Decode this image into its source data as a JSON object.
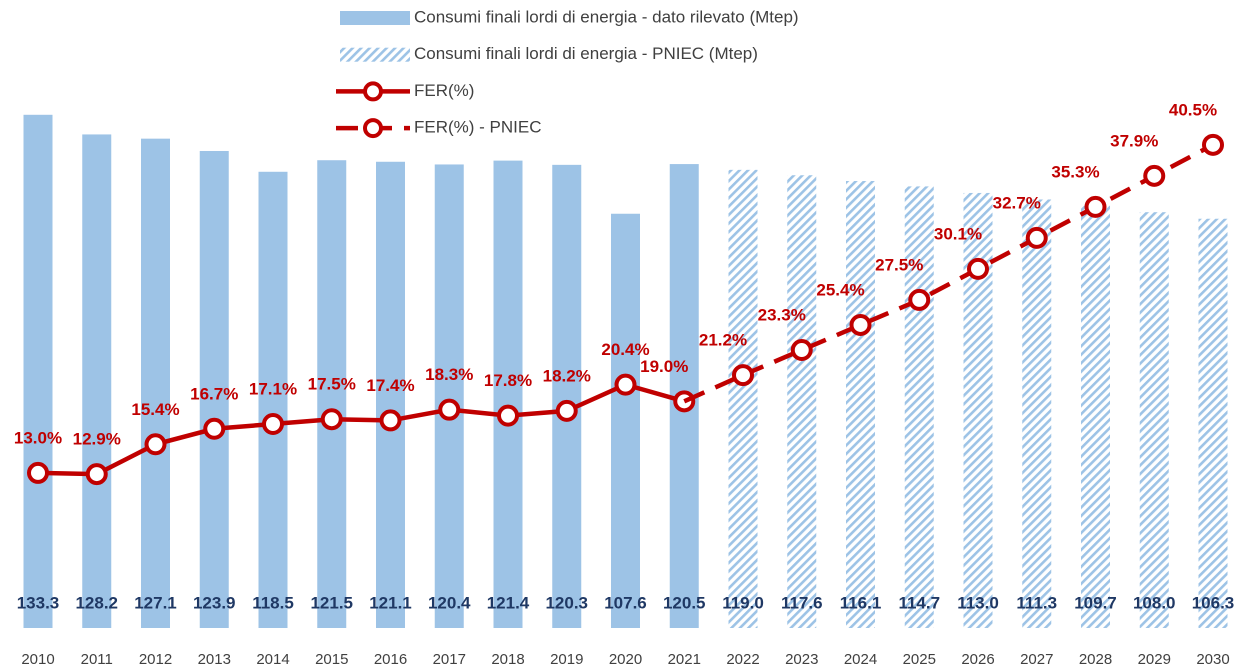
{
  "chart_data": {
    "type": "bar-line",
    "categories": [
      "2010",
      "2011",
      "2012",
      "2013",
      "2014",
      "2015",
      "2016",
      "2017",
      "2018",
      "2019",
      "2020",
      "2021",
      "2022",
      "2023",
      "2024",
      "2025",
      "2026",
      "2027",
      "2028",
      "2029",
      "2030"
    ],
    "series": [
      {
        "name": "Consumi finali lordi di energia - dato rilevato (Mtep)",
        "type": "bar",
        "fill": "solid",
        "color": "#9dc3e6",
        "values": [
          133.3,
          128.2,
          127.1,
          123.9,
          118.5,
          121.5,
          121.1,
          120.4,
          121.4,
          120.3,
          107.6,
          120.5,
          null,
          null,
          null,
          null,
          null,
          null,
          null,
          null,
          null
        ],
        "value_labels": [
          "133.3",
          "128.2",
          "127.1",
          "123.9",
          "118.5",
          "121.5",
          "121.1",
          "120.4",
          "121.4",
          "120.3",
          "107.6",
          "120.5",
          null,
          null,
          null,
          null,
          null,
          null,
          null,
          null,
          null
        ]
      },
      {
        "name": "Consumi finali lordi di energia - PNIEC (Mtep)",
        "type": "bar",
        "fill": "hatched",
        "color": "#9dc3e6",
        "values": [
          null,
          null,
          null,
          null,
          null,
          null,
          null,
          null,
          null,
          null,
          null,
          null,
          119.0,
          117.6,
          116.1,
          114.7,
          113.0,
          111.3,
          109.7,
          108.0,
          106.3
        ],
        "value_labels": [
          null,
          null,
          null,
          null,
          null,
          null,
          null,
          null,
          null,
          null,
          null,
          null,
          "119.0",
          "117.6",
          "116.1",
          "114.7",
          "113.0",
          "111.3",
          "109.7",
          "108.0",
          "106.3"
        ]
      },
      {
        "name": "FER(%)",
        "type": "line",
        "line_style": "solid",
        "color": "#c00000",
        "axis": "y2",
        "values": [
          13.0,
          12.9,
          15.4,
          16.7,
          17.1,
          17.5,
          17.4,
          18.3,
          17.8,
          18.2,
          20.4,
          19.0,
          null,
          null,
          null,
          null,
          null,
          null,
          null,
          null,
          null
        ],
        "value_labels": [
          "13.0%",
          "12.9%",
          "15.4%",
          "16.7%",
          "17.1%",
          "17.5%",
          "17.4%",
          "18.3%",
          "17.8%",
          "18.2%",
          "20.4%",
          "19.0%",
          null,
          null,
          null,
          null,
          null,
          null,
          null,
          null,
          null
        ]
      },
      {
        "name": "FER(%) - PNIEC",
        "type": "line",
        "line_style": "dashed",
        "color": "#c00000",
        "axis": "y2",
        "values": [
          null,
          null,
          null,
          null,
          null,
          null,
          null,
          null,
          null,
          null,
          null,
          null,
          21.2,
          23.3,
          25.4,
          27.5,
          30.1,
          32.7,
          35.3,
          37.9,
          40.5
        ],
        "value_labels": [
          null,
          null,
          null,
          null,
          null,
          null,
          null,
          null,
          null,
          null,
          null,
          null,
          "21.2%",
          "23.3%",
          "25.4%",
          "27.5%",
          "30.1%",
          "32.7%",
          "35.3%",
          "37.9%",
          "40.5%"
        ]
      }
    ]
  }
}
